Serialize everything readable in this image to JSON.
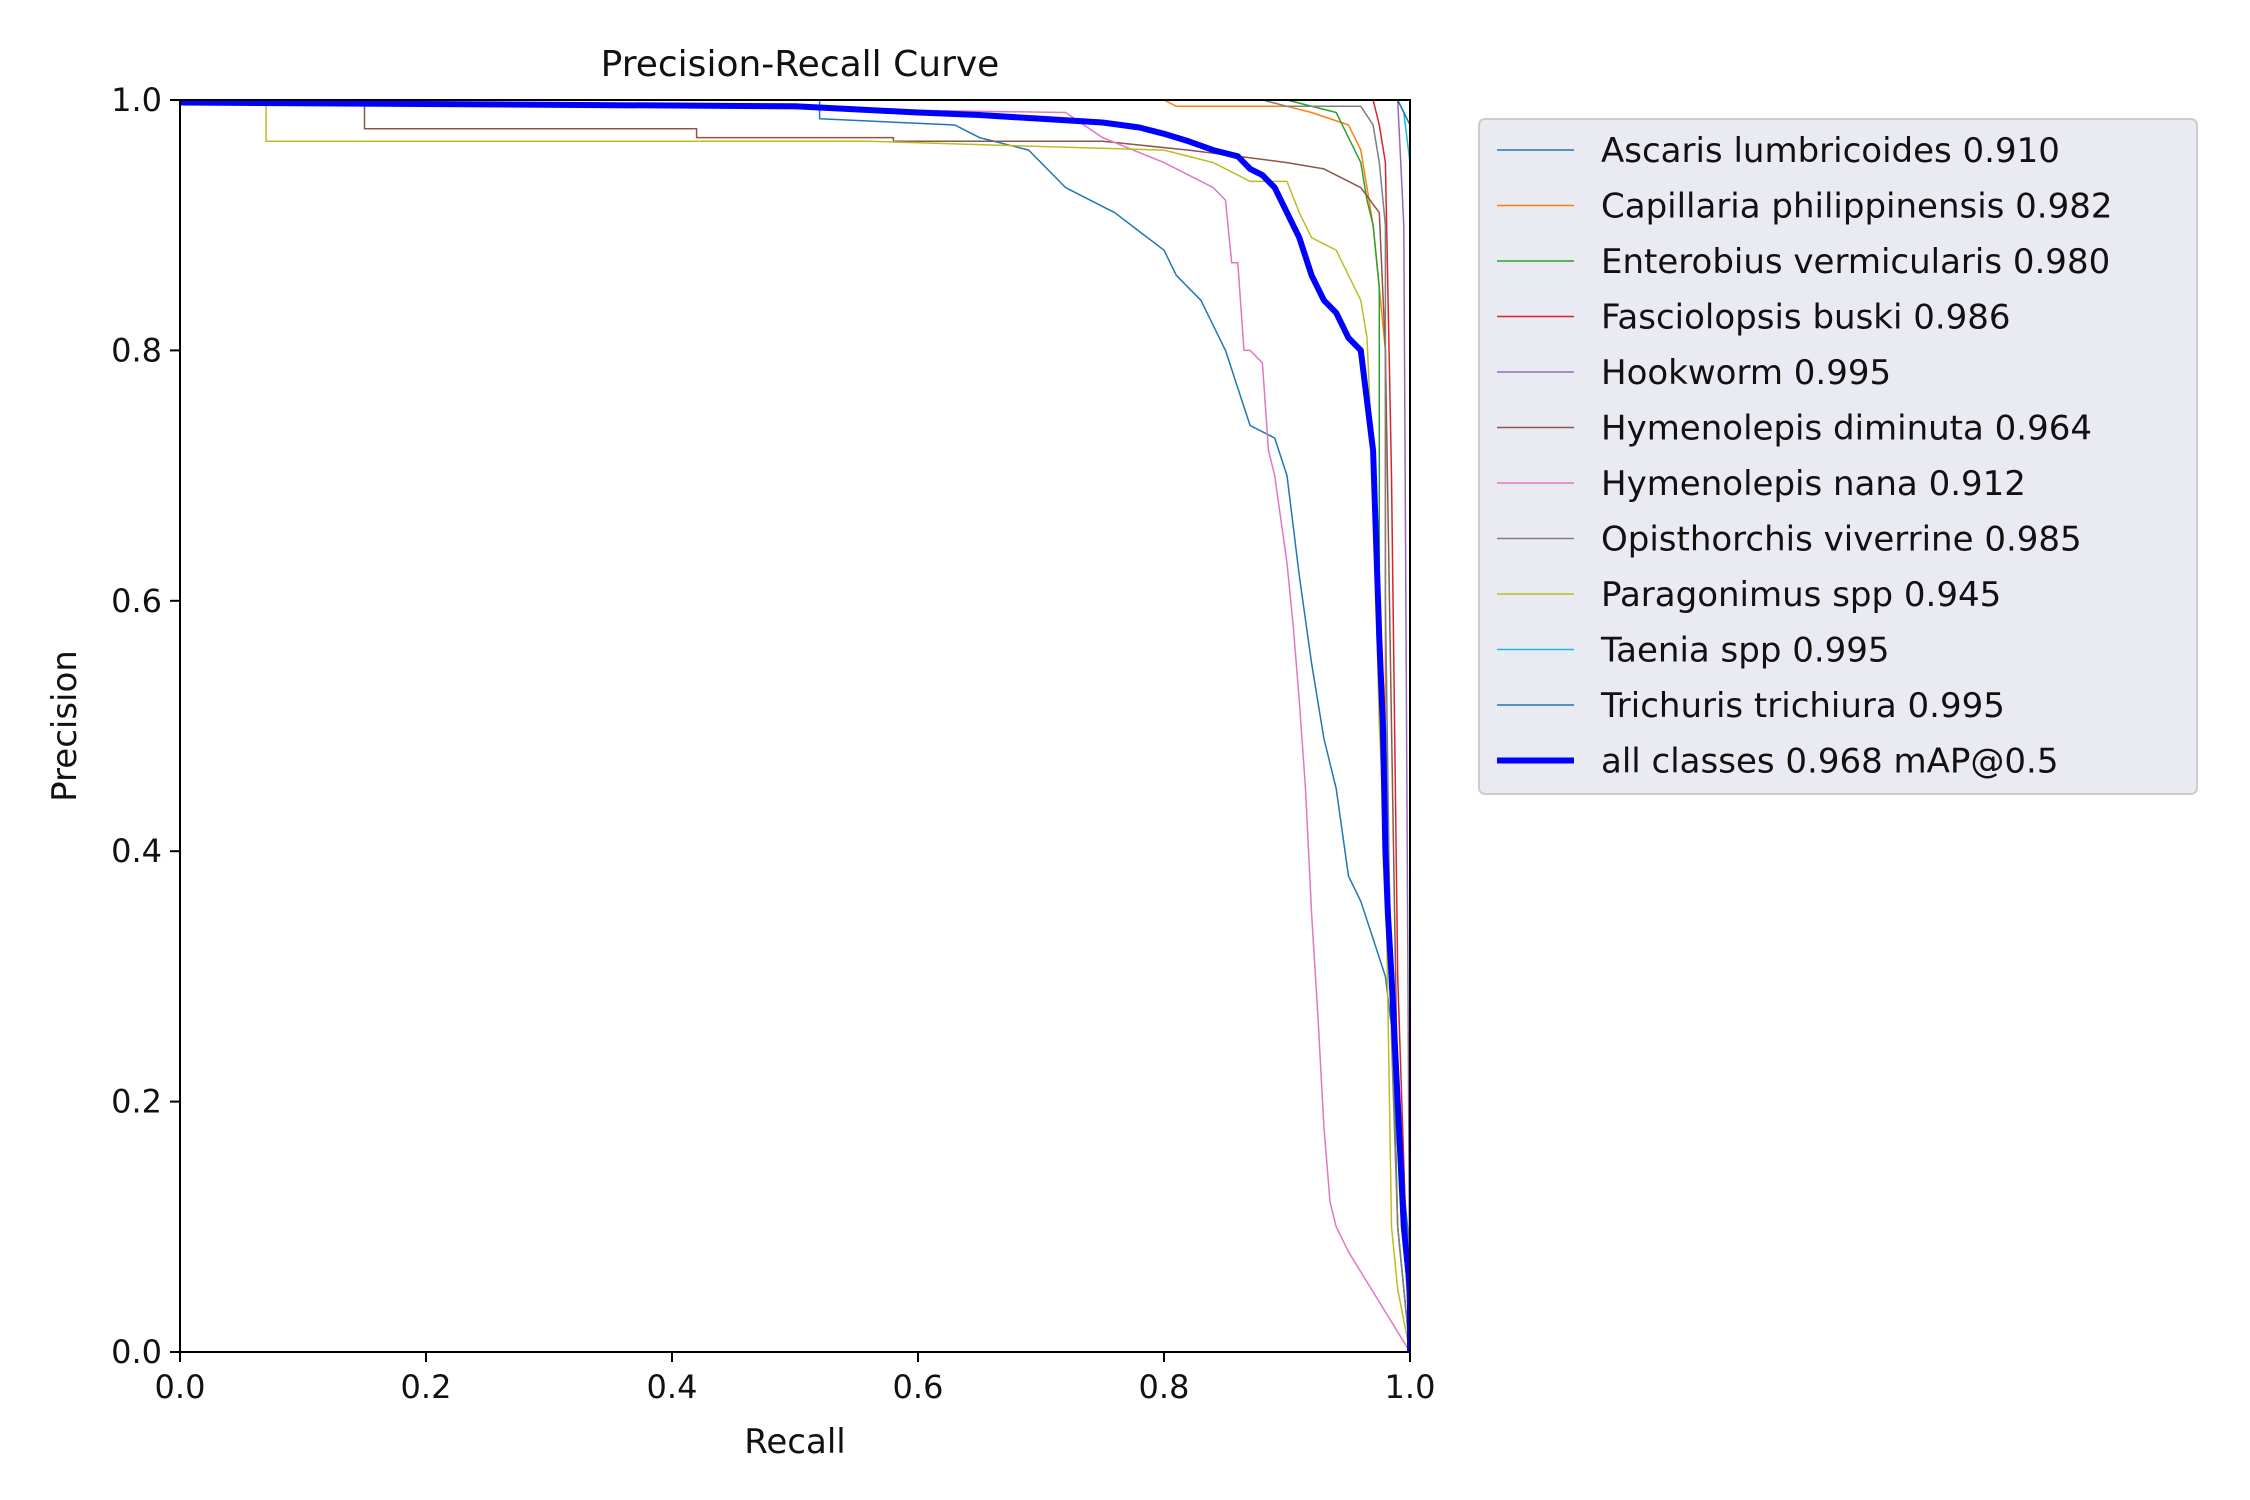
{
  "chart_data": {
    "type": "line",
    "title": "Precision-Recall Curve",
    "xlabel": "Recall",
    "ylabel": "Precision",
    "xlim": [
      0,
      1
    ],
    "ylim": [
      0,
      1
    ],
    "xticks": [
      "0.0",
      "0.2",
      "0.4",
      "0.6",
      "0.8",
      "1.0"
    ],
    "yticks": [
      "0.0",
      "0.2",
      "0.4",
      "0.6",
      "0.8",
      "1.0"
    ],
    "grid": false,
    "legend_position": "outside-top-right",
    "series": [
      {
        "name": "Ascaris lumbricoides 0.910",
        "color": "#1f77b4",
        "width": 1.5,
        "x": [
          0,
          0.52,
          0.52,
          0.63,
          0.64,
          0.65,
          0.67,
          0.69,
          0.7,
          0.72,
          0.74,
          0.76,
          0.78,
          0.8,
          0.81,
          0.83,
          0.85,
          0.86,
          0.87,
          0.89,
          0.9,
          0.91,
          0.92,
          0.93,
          0.94,
          0.95,
          0.96,
          0.97,
          0.98,
          0.985,
          0.99,
          1.0,
          1.0
        ],
        "y": [
          1.0,
          1.0,
          0.985,
          0.98,
          0.975,
          0.97,
          0.965,
          0.96,
          0.95,
          0.93,
          0.92,
          0.91,
          0.895,
          0.88,
          0.86,
          0.84,
          0.8,
          0.77,
          0.74,
          0.73,
          0.7,
          0.62,
          0.55,
          0.49,
          0.45,
          0.38,
          0.36,
          0.33,
          0.3,
          0.26,
          0.18,
          0.08,
          0.0
        ]
      },
      {
        "name": "Capillaria philippinensis 0.982",
        "color": "#ff7f0e",
        "width": 1.5,
        "x": [
          0,
          0.66,
          0.8,
          0.81,
          0.9,
          0.92,
          0.95,
          0.96,
          0.965,
          0.97,
          0.975,
          0.98,
          0.98,
          0.985,
          0.99,
          1.0
        ],
        "y": [
          1.0,
          1.0,
          1.0,
          0.995,
          0.995,
          0.99,
          0.98,
          0.96,
          0.93,
          0.9,
          0.85,
          0.8,
          0.5,
          0.3,
          0.1,
          0.0
        ]
      },
      {
        "name": "Enterobius vermicularis 0.980",
        "color": "#2ca02c",
        "width": 1.5,
        "x": [
          0,
          0.9,
          0.94,
          0.95,
          0.96,
          0.965,
          0.97,
          0.975,
          0.975,
          0.98,
          0.985,
          0.99,
          1.0
        ],
        "y": [
          1.0,
          1.0,
          0.99,
          0.97,
          0.95,
          0.92,
          0.9,
          0.85,
          0.6,
          0.5,
          0.3,
          0.1,
          0.0
        ]
      },
      {
        "name": "Fasciolopsis buski 0.986",
        "color": "#d62728",
        "width": 1.5,
        "x": [
          0,
          0.97,
          0.975,
          0.98,
          0.985,
          0.99,
          1.0
        ],
        "y": [
          1.0,
          1.0,
          0.98,
          0.95,
          0.7,
          0.3,
          0.0
        ]
      },
      {
        "name": "Hookworm 0.995",
        "color": "#9467bd",
        "width": 1.5,
        "x": [
          0,
          0.99,
          0.995,
          1.0
        ],
        "y": [
          1.0,
          1.0,
          0.9,
          0.0
        ]
      },
      {
        "name": "Hymenolepis diminuta 0.964",
        "color": "#8c564b",
        "width": 1.5,
        "x": [
          0,
          0.15,
          0.15,
          0.42,
          0.42,
          0.58,
          0.58,
          0.75,
          0.82,
          0.86,
          0.9,
          0.93,
          0.96,
          0.975,
          0.98,
          0.985,
          0.99,
          1.0
        ],
        "y": [
          1.0,
          1.0,
          0.977,
          0.977,
          0.97,
          0.97,
          0.967,
          0.967,
          0.96,
          0.955,
          0.95,
          0.945,
          0.93,
          0.91,
          0.8,
          0.5,
          0.2,
          0.0
        ]
      },
      {
        "name": "Hymenolepis nana 0.912",
        "color": "#e377c2",
        "width": 1.5,
        "x": [
          0,
          0.72,
          0.75,
          0.8,
          0.82,
          0.84,
          0.85,
          0.855,
          0.86,
          0.865,
          0.87,
          0.88,
          0.885,
          0.89,
          0.9,
          0.905,
          0.91,
          0.915,
          0.92,
          0.925,
          0.93,
          0.935,
          0.94,
          0.95,
          1.0
        ],
        "y": [
          1.0,
          0.99,
          0.97,
          0.95,
          0.94,
          0.93,
          0.92,
          0.87,
          0.87,
          0.8,
          0.8,
          0.79,
          0.72,
          0.7,
          0.63,
          0.58,
          0.52,
          0.45,
          0.35,
          0.27,
          0.18,
          0.12,
          0.1,
          0.08,
          0.0
        ]
      },
      {
        "name": "Opisthorchis viverrine 0.985",
        "color": "#7f7f7f",
        "width": 1.5,
        "x": [
          0,
          0.88,
          0.9,
          0.96,
          0.97,
          0.975,
          0.98,
          0.98,
          0.985,
          0.99,
          1.0
        ],
        "y": [
          1.0,
          1.0,
          0.995,
          0.995,
          0.98,
          0.95,
          0.9,
          0.6,
          0.25,
          0.1,
          0.0
        ]
      },
      {
        "name": "Paragonimus spp 0.945",
        "color": "#bcbd22",
        "width": 1.5,
        "x": [
          0,
          0.07,
          0.07,
          0.56,
          0.8,
          0.84,
          0.86,
          0.87,
          0.9,
          0.91,
          0.92,
          0.94,
          0.95,
          0.96,
          0.965,
          0.97,
          0.975,
          0.98,
          0.985,
          0.99,
          1.0
        ],
        "y": [
          1.0,
          1.0,
          0.967,
          0.967,
          0.96,
          0.95,
          0.94,
          0.935,
          0.935,
          0.91,
          0.89,
          0.88,
          0.86,
          0.84,
          0.81,
          0.7,
          0.5,
          0.4,
          0.1,
          0.05,
          0.0
        ]
      },
      {
        "name": "Taenia spp 0.995",
        "color": "#17becf",
        "width": 1.5,
        "x": [
          0,
          0.99,
          0.995,
          1.0,
          1.0
        ],
        "y": [
          1.0,
          1.0,
          0.99,
          0.95,
          0.0
        ]
      },
      {
        "name": "Trichuris trichiura 0.995",
        "color": "#1f77b4",
        "width": 1.5,
        "x": [
          0,
          0.99,
          1.0,
          1.0
        ],
        "y": [
          1.0,
          1.0,
          0.98,
          0.0
        ]
      },
      {
        "name": "all classes 0.968 mAP@0.5",
        "color": "#0000ff",
        "width": 6,
        "x": [
          0,
          0.5,
          0.6,
          0.65,
          0.7,
          0.75,
          0.78,
          0.8,
          0.82,
          0.84,
          0.86,
          0.87,
          0.88,
          0.89,
          0.9,
          0.91,
          0.92,
          0.93,
          0.94,
          0.95,
          0.96,
          0.97,
          0.975,
          0.978,
          0.98,
          0.982,
          0.985,
          0.99,
          0.995,
          1.0,
          1.0
        ],
        "y": [
          0.998,
          0.995,
          0.99,
          0.988,
          0.985,
          0.982,
          0.978,
          0.973,
          0.967,
          0.96,
          0.955,
          0.945,
          0.94,
          0.93,
          0.91,
          0.89,
          0.86,
          0.84,
          0.83,
          0.81,
          0.8,
          0.72,
          0.57,
          0.5,
          0.4,
          0.35,
          0.3,
          0.2,
          0.1,
          0.05,
          0.0
        ]
      }
    ]
  }
}
